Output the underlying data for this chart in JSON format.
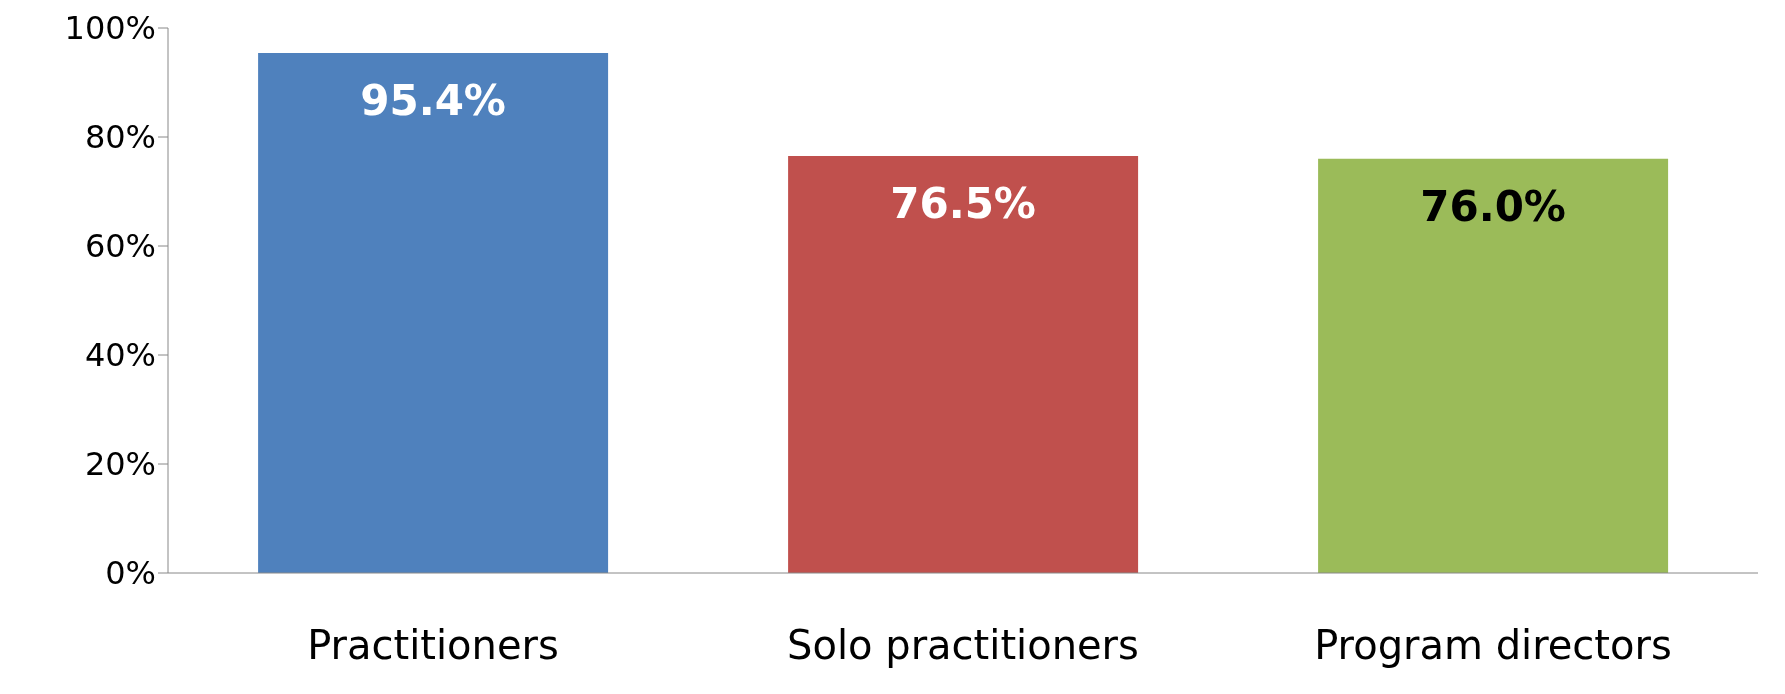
{
  "chart_data": {
    "type": "bar",
    "categories": [
      "Practitioners",
      "Solo practitioners",
      "Program directors"
    ],
    "values": [
      95.4,
      76.5,
      76.0
    ],
    "colors": [
      "#4f81bd",
      "#c0504d",
      "#9bbb59"
    ],
    "value_labels": [
      "95.4%",
      "76.5%",
      "76.0%"
    ],
    "ylim": [
      0,
      100
    ],
    "yticks": [
      {
        "value": 0,
        "label": "0%"
      },
      {
        "value": 20,
        "label": "20%"
      },
      {
        "value": 40,
        "label": "40%"
      },
      {
        "value": 60,
        "label": "60%"
      },
      {
        "value": 80,
        "label": "80%"
      },
      {
        "value": 100,
        "label": "100%"
      }
    ],
    "grid": false,
    "legend": false
  }
}
